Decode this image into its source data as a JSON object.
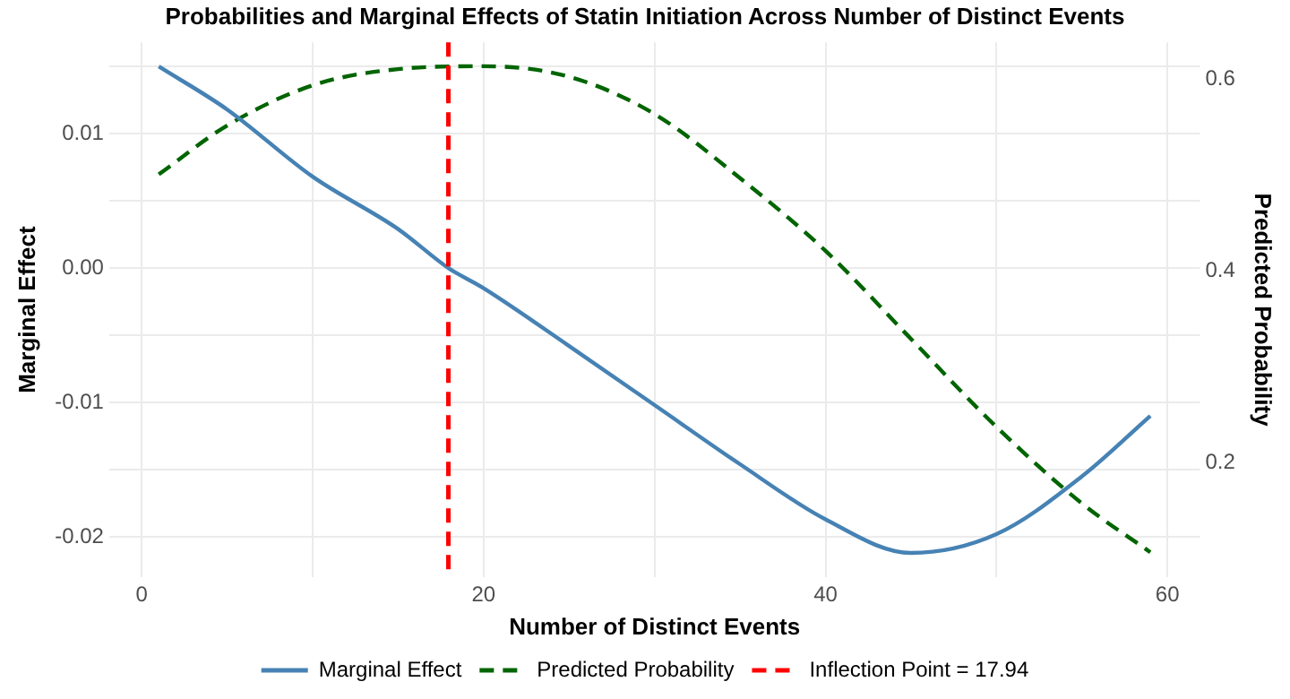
{
  "chart_data": {
    "type": "line",
    "title": "Probabilities and Marginal Effects of Statin Initiation Across Number of Distinct Events",
    "xlabel": "Number of Distinct Events",
    "ylabel": "Marginal Effect",
    "y2label": "Predicted Probability",
    "xlim": [
      -1.9,
      61.9
    ],
    "xticks": [
      0,
      {
        "value": 10,
        "label": null
      },
      20,
      {
        "value": 30,
        "label": null
      },
      40,
      {
        "value": 50,
        "label": null
      },
      60
    ],
    "ylim": [
      -0.023,
      0.0168
    ],
    "yticks": [
      -0.02,
      {
        "value": -0.015,
        "label": null
      },
      -0.01,
      {
        "value": -0.005,
        "label": null
      },
      {
        "value": 0,
        "label": "0.00"
      },
      {
        "value": 0.005,
        "label": null
      },
      0.01,
      {
        "value": 0.015,
        "label": null
      }
    ],
    "y2lim": [
      0.08,
      0.639
    ],
    "y2ticks": [
      0.2,
      0.4,
      0.6
    ],
    "grid": true,
    "legend": "bottom",
    "marker": "none",
    "series": [
      {
        "name": "Marginal Effect",
        "color": "#4682b4",
        "line_style": "solid",
        "x": [
          1,
          5,
          10,
          15,
          17.94,
          20,
          25,
          30,
          35,
          40,
          45,
          50,
          55,
          59
        ],
        "values": [
          0.015,
          0.0118,
          0.0068,
          0.0029,
          0,
          -0.0015,
          -0.0058,
          -0.0102,
          -0.0146,
          -0.0187,
          -0.0212,
          -0.0198,
          -0.0155,
          -0.011
        ]
      },
      {
        "name": "Predicted Probability",
        "color": "#006400",
        "line_style": "dashed",
        "axis": "y2",
        "x": [
          1,
          5,
          10,
          15,
          20,
          25,
          30,
          35,
          40,
          45,
          50,
          55,
          59
        ],
        "values": [
          0.501,
          0.552,
          0.594,
          0.611,
          0.614,
          0.603,
          0.564,
          0.497,
          0.421,
          0.329,
          0.237,
          0.157,
          0.106
        ]
      }
    ],
    "ref_lines": [
      {
        "axis": "x",
        "value": 17.94,
        "label": "Inflection Point = 17.94",
        "color": "#ff0000",
        "line_style": "dashed"
      }
    ]
  }
}
